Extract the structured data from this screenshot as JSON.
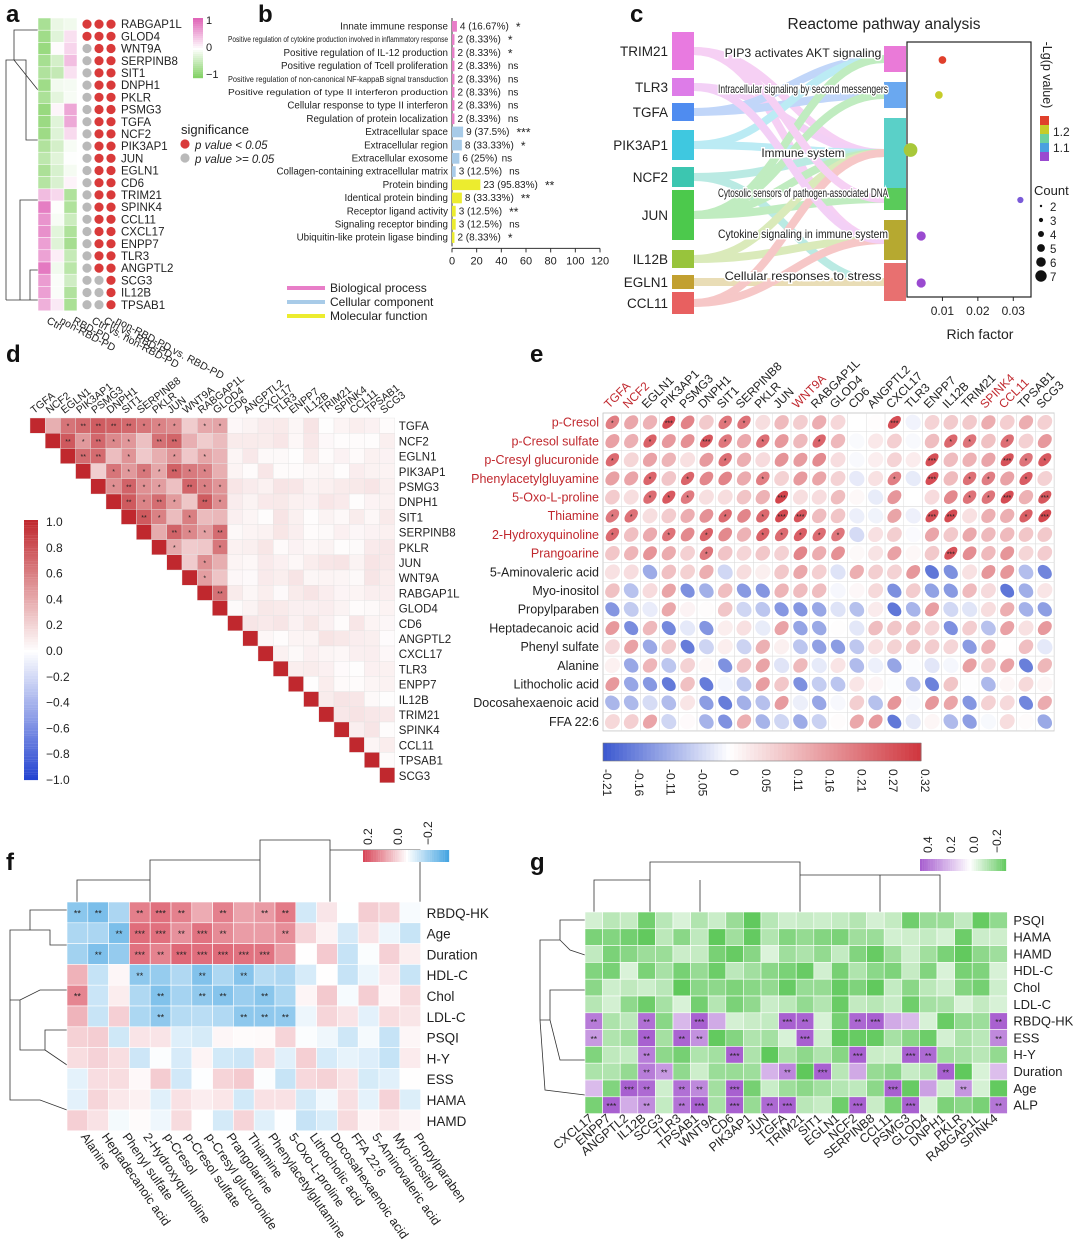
{
  "panel_labels": [
    "a",
    "b",
    "c",
    "d",
    "e",
    "f",
    "g"
  ],
  "panel_a": {
    "genes": [
      "RABGAP1L",
      "GLOD4",
      "WNT9A",
      "SERPINB8",
      "SIT1",
      "DNPH1",
      "PKLR",
      "PSMG3",
      "TGFA",
      "NCF2",
      "PIK3AP1",
      "JUN",
      "EGLN1",
      "CD6",
      "TRIM21",
      "SPINK4",
      "CCL11",
      "CXCL17",
      "ENPP7",
      "TLR3",
      "ANGPTL2",
      "SCG3",
      "IL12B",
      "TPSAB1"
    ],
    "columns": [
      "Ctrl",
      "non-RBD-PD",
      "RBD-PD",
      "Ctrl vs. non-RBD-PD",
      "Ctrl vs. RBD-PD",
      "non-RBD-PD vs. RBD-PD"
    ],
    "legend_ticks": [
      "1",
      "0",
      "−1"
    ],
    "significance_title": "significance",
    "sig_legend": [
      "p value < 0.05",
      "p value >= 0.05"
    ],
    "colors": {
      "high": "#e066b8",
      "low": "#7ccf5c",
      "sig": "#d93a3a",
      "nonsig": "#b9b9b9"
    }
  },
  "panel_b": {
    "chart_data": {
      "type": "bar",
      "categories": [
        "Innate immune response",
        "Positive regulation of cytokine production involved in inflammatory response",
        "Positive regulation of IL-12 production",
        "Positive regulation of Tcell proliferation",
        "Positive regulation of non-canonical NF-kappaB signal transduction",
        "Positive regulation of type II interferon production",
        "Cellular response to type II interferon",
        "Regulation of protein localization",
        "Extracellular space",
        "Extracellular region",
        "Extracellular exosome",
        "Collagen-containing extracellular matrix",
        "Protein binding",
        "Identical protein binding",
        "Receptor ligand activity",
        "Signaling receptor binding",
        "Ubiquitin-like protein ligase binding"
      ],
      "values": [
        4,
        2,
        2,
        2,
        2,
        2,
        2,
        2,
        9,
        8,
        6,
        3,
        23,
        8,
        3,
        3,
        2
      ],
      "bar_labels": [
        "4 (16.67%)",
        "2 (8.33%)",
        "2 (8.33%)",
        "2 (8.33%)",
        "2 (8.33%)",
        "2 (8.33%)",
        "2 (8.33%)",
        "2 (8.33%)",
        "9 (37.5%)",
        "8 (33.33%)",
        "6 (25%)",
        "3 (12.5%)",
        "23 (95.83%)",
        "8 (33.33%)",
        "3 (12.5%)",
        "3 (12.5%)",
        "2 (8.33%)"
      ],
      "significance": [
        "*",
        "*",
        "*",
        "ns",
        "ns",
        "ns",
        "ns",
        "ns",
        "***",
        "*",
        "ns",
        "ns",
        "**",
        "**",
        "**",
        "ns",
        "*"
      ],
      "groups": [
        "BP",
        "BP",
        "BP",
        "BP",
        "BP",
        "BP",
        "BP",
        "BP",
        "CC",
        "CC",
        "CC",
        "CC",
        "MF",
        "MF",
        "MF",
        "MF",
        "MF"
      ],
      "xticks": [
        "0",
        "20",
        "40",
        "60",
        "80",
        "100",
        "120"
      ],
      "xlim": [
        0,
        120
      ],
      "legend": [
        "Biological process",
        "Cellular component",
        "Molecular function"
      ],
      "colors": {
        "BP": "#e87ec8",
        "CC": "#a8cbe8",
        "MF": "#ecec2e"
      }
    }
  },
  "panel_c": {
    "title": "Reactome pathway analysis",
    "genes": [
      "TRIM21",
      "TLR3",
      "TGFA",
      "PIK3AP1",
      "NCF2",
      "JUN",
      "IL12B",
      "EGLN1",
      "CCL11"
    ],
    "gene_colors": [
      "#e87ae0",
      "#dd7ce8",
      "#4f8cf0",
      "#3fc8e0",
      "#3cc6b0",
      "#4cc94c",
      "#98c43c",
      "#c2a030",
      "#e86060"
    ],
    "pathways": [
      "PIP3 activates AKT signaling",
      "Intracellular signaling by second messengers",
      "Immune system",
      "Cytosolic sensors of pathogen-associated DNA",
      "Cytokine signaling in immune system",
      "Cellular responses to stress"
    ],
    "pathway_colors": [
      "#ea7ad8",
      "#6aa8f0",
      "#5ad0c8",
      "#5acb5a",
      "#b6a930",
      "#e87070"
    ],
    "chart_data": {
      "type": "scatter",
      "x": [
        0.01,
        0.009,
        0.001,
        0.032,
        0.004,
        0.004
      ],
      "y_categories": [
        "PIP3 activates AKT signaling",
        "Intracellular signaling by second messengers",
        "Immune system",
        "Cytosolic sensors of pathogen-associated DNA",
        "Cytokine signaling in immune system",
        "Cellular responses to stress"
      ],
      "neglog_p": [
        1.25,
        1.18,
        1.15,
        1.1,
        1.05,
        1.03
      ],
      "count": [
        3,
        3,
        7,
        2,
        4,
        4
      ],
      "xlabel": "Rich factor",
      "xticks": [
        "0.01",
        "0.02",
        "0.03"
      ],
      "xlim": [
        0,
        0.035
      ],
      "colorbar_label": "-Lg(p value)",
      "colorbar_ticks": [
        "1.2",
        "1.1"
      ],
      "count_title": "Count",
      "count_legend": [
        "2",
        "3",
        "4",
        "5",
        "6",
        "7"
      ]
    }
  },
  "panel_d": {
    "genes": [
      "TGFA",
      "NCF2",
      "EGLN1",
      "PIK3AP1",
      "PSMG3",
      "DNPH1",
      "SIT1",
      "SERPINB8",
      "PKLR",
      "JUN",
      "WNT9A",
      "RABGAP1L",
      "GLOD4",
      "CD6",
      "ANGPTL2",
      "CXCL17",
      "TLR3",
      "ENPP7",
      "IL12B",
      "TRIM21",
      "SPINK4",
      "CCL11",
      "TPSAB1",
      "SCG3"
    ],
    "colorbar_ticks": [
      "1.0",
      "0.8",
      "0.6",
      "0.4",
      "0.2",
      "0.0",
      "−0.2",
      "−0.4",
      "−0.6",
      "−0.8",
      "−1.0"
    ]
  },
  "panel_e": {
    "genes": [
      "TGFA",
      "NCF2",
      "EGLN1",
      "PIK3AP1",
      "PSMG3",
      "DNPH1",
      "SIT1",
      "SERPINB8",
      "PKLR",
      "JUN",
      "WNT9A",
      "RABGAP1L",
      "GLOD4",
      "CD6",
      "ANGPTL2",
      "CXCL17",
      "TLR3",
      "ENPP7",
      "IL12B",
      "TRIM21",
      "SPINK4",
      "CCL11",
      "TPSAB1",
      "SCG3"
    ],
    "red_genes": [
      "TGFA",
      "NCF2",
      "WNT9A",
      "SPINK4",
      "CCL11"
    ],
    "metabolites": [
      "p-Cresol",
      "p-Cresol sulfate",
      "p-Cresyl glucuronide",
      "Phenylacetylgluyamine",
      "5-Oxo-L-proline",
      "Thiamine",
      "2-Hydroxyquinoline",
      "Prangoarine",
      "5-Aminovaleric acid",
      "Myo-inositol",
      "Propylparaben",
      "Heptadecanoic acid",
      "Phenyl sulfate",
      "Alanine",
      "Lithocholic acid",
      "Docosahexaenoic acid",
      "FFA 22:6"
    ],
    "red_metabolites": 8,
    "colorbar_ticks": [
      "-0.21",
      "-0.16",
      "-0.11",
      "-0.05",
      "0",
      "0.05",
      "0.11",
      "0.16",
      "0.21",
      "0.27",
      "0.32"
    ]
  },
  "panel_f": {
    "rows": [
      "RBDQ-HK",
      "Age",
      "Duration",
      "HDL-C",
      "Chol",
      "LDL-C",
      "PSQI",
      "H-Y",
      "ESS",
      "HAMA",
      "HAMD"
    ],
    "cols": [
      "Alanine",
      "Heptadecanoic acid",
      "Phenyl sulfate",
      "2-Hydroxyquinoline",
      "p-Cresol",
      "p-Cresol sulfate",
      "p-Cresyl glucuronide",
      "Prangolarine",
      "Thiamine",
      "Phenylacetylglutamine",
      "5-Oxo-L-proline",
      "Lithocholic acid",
      "Docosahexaenoic acid",
      "FFA 22:6",
      "5-Aminovaleric acid",
      "Myo-inositol",
      "Propylparaben"
    ],
    "legend_ticks": [
      "0.2",
      "0.0",
      "−0.2"
    ]
  },
  "panel_g": {
    "rows": [
      "PSQI",
      "HAMA",
      "HAMD",
      "HDL-C",
      "Chol",
      "LDL-C",
      "RBDQ-HK",
      "ESS",
      "H-Y",
      "Duration",
      "Age",
      "ALP"
    ],
    "cols": [
      "CXCL17",
      "ENPP7",
      "ANGPTL2",
      "IL12B",
      "SCG3",
      "TLR3",
      "TPSAB1",
      "WNT9A",
      "CD6",
      "PIK3AP1",
      "JUN",
      "TGFA",
      "TRIM21",
      "SIT1",
      "EGLN1",
      "NCF2",
      "SERPINB8",
      "CCL11",
      "PSMG3",
      "GLOD4",
      "DNPH1",
      "PKLR",
      "RABGAP1L",
      "SPINK4"
    ],
    "legend_ticks": [
      "0.4",
      "0.2",
      "0.0",
      "−0.2"
    ]
  }
}
